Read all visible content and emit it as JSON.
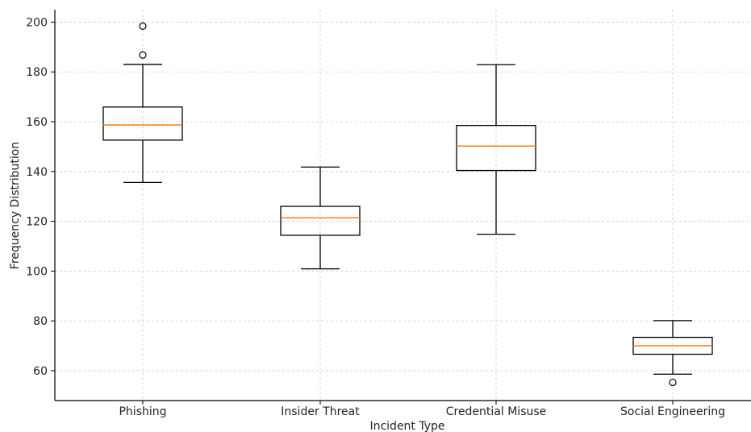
{
  "chart_data": {
    "type": "boxplot",
    "xlabel": "Incident Type",
    "ylabel": "Frequency Distribution",
    "ylim": [
      48,
      205
    ],
    "yticks": [
      60,
      80,
      100,
      120,
      140,
      160,
      180,
      200
    ],
    "grid": true,
    "categories": [
      "Phishing",
      "Insider Threat",
      "Credential Misuse",
      "Social Engineering"
    ],
    "boxes": [
      {
        "category": "Phishing",
        "whisker_low": 135.6,
        "q1": 152.6,
        "median": 158.7,
        "q3": 165.9,
        "whisker_high": 183.0,
        "outliers": [
          186.8,
          198.4
        ]
      },
      {
        "category": "Insider Threat",
        "whisker_low": 100.9,
        "q1": 114.4,
        "median": 121.4,
        "q3": 126.0,
        "whisker_high": 141.8,
        "outliers": []
      },
      {
        "category": "Credential Misuse",
        "whisker_low": 114.8,
        "q1": 140.4,
        "median": 150.2,
        "q3": 158.5,
        "whisker_high": 182.9,
        "outliers": []
      },
      {
        "category": "Social Engineering",
        "whisker_low": 58.6,
        "q1": 66.6,
        "median": 70.0,
        "q3": 73.4,
        "whisker_high": 80.1,
        "outliers": [
          55.3
        ]
      }
    ],
    "colors": {
      "box": "#000000",
      "median": "#ff7f0e",
      "grid": "#cccccc",
      "axis": "#000000"
    }
  }
}
